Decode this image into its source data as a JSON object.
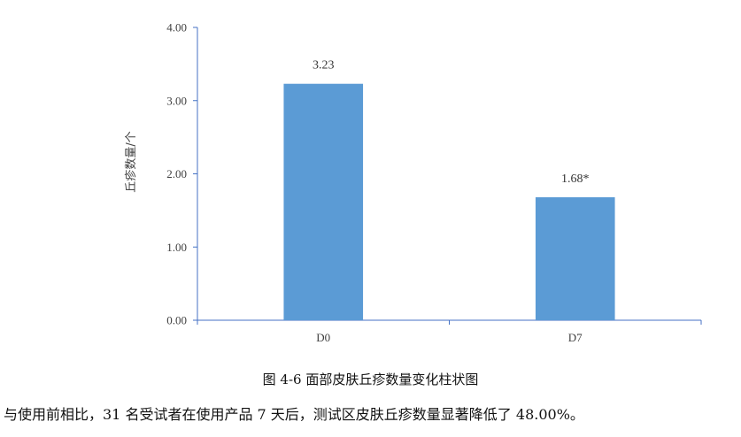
{
  "chart_data": {
    "type": "bar",
    "categories": [
      "D0",
      "D7"
    ],
    "values": [
      3.23,
      1.68
    ],
    "data_labels": [
      "3.23",
      "1.68*"
    ],
    "ylabel": "丘疹数量/个",
    "xlabel": "",
    "ylim": [
      0,
      4
    ],
    "yticks": [
      "0.00",
      "1.00",
      "2.00",
      "3.00",
      "4.00"
    ],
    "grid": false,
    "bar_color": "#5B9BD5",
    "axis_color": "#4472C4"
  },
  "caption": "图 4-6 面部皮肤丘疹数量变化柱状图",
  "body_text": "与使用前相比，31 名受试者在使用产品 7 天后，测试区皮肤丘疹数量显著降低了 48.00%。"
}
